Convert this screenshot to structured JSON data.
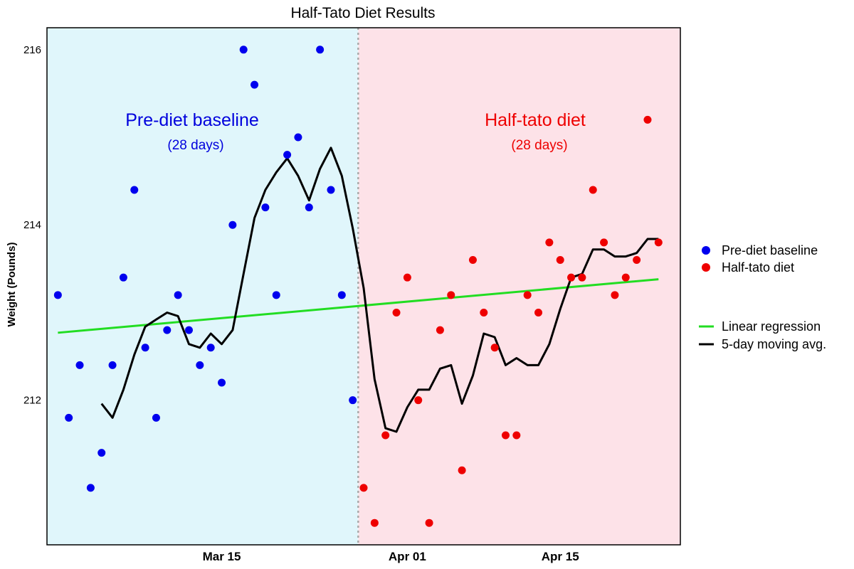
{
  "chart_data": {
    "type": "scatter",
    "title": "Half-Tato Diet Results",
    "ylabel": "Weight (Pounds)",
    "xlabel": "",
    "x_unit": "day index (0 = Feb 29)",
    "xlim": [
      -1,
      57
    ],
    "ylim": [
      210.35,
      216.25
    ],
    "yticks": [
      212,
      214,
      216
    ],
    "xticks": [
      {
        "day": 15,
        "label": "Mar 15"
      },
      {
        "day": 32,
        "label": "Apr 01"
      },
      {
        "day": 46,
        "label": "Apr 15"
      }
    ],
    "split_day": 27.5,
    "grid": false,
    "legend_position": "right",
    "regions": [
      {
        "label": "Pre-diet baseline",
        "sublabel": "(28 days)",
        "color": "#0000dd",
        "fill": "#e0f6fb"
      },
      {
        "label": "Half-tato diet",
        "sublabel": "(28 days)",
        "color": "#ee0000",
        "fill": "#fde2e8"
      }
    ],
    "series": [
      {
        "name": "Pre-diet baseline",
        "color": "#0000ee",
        "x": [
          0,
          1,
          2,
          3,
          4,
          5,
          6,
          7,
          8,
          9,
          10,
          11,
          12,
          13,
          14,
          15,
          16,
          17,
          18,
          19,
          20,
          21,
          22,
          23,
          24,
          25,
          26,
          27
        ],
        "values": [
          213.2,
          211.8,
          212.4,
          211.0,
          211.4,
          212.4,
          213.4,
          214.4,
          212.6,
          211.8,
          212.8,
          213.2,
          212.8,
          212.4,
          212.6,
          212.2,
          214.0,
          216.0,
          215.6,
          214.2,
          213.2,
          214.8,
          215.0,
          214.2,
          216.0,
          214.4,
          213.2,
          212.0
        ]
      },
      {
        "name": "Half-tato diet",
        "color": "#ee0000",
        "x": [
          28,
          29,
          30,
          31,
          32,
          33,
          34,
          35,
          36,
          37,
          38,
          39,
          40,
          41,
          42,
          43,
          44,
          45,
          46,
          47,
          48,
          49,
          50,
          51,
          52,
          53,
          54,
          55
        ],
        "values": [
          211.0,
          210.6,
          211.6,
          213.0,
          213.4,
          212.0,
          210.6,
          212.8,
          213.2,
          211.2,
          213.6,
          213.0,
          212.6,
          211.6,
          211.6,
          213.2,
          213.0,
          213.8,
          213.6,
          213.4,
          213.4,
          214.4,
          213.8,
          213.2,
          213.4,
          213.6,
          215.2,
          213.8
        ]
      }
    ],
    "linear_regression": {
      "name": "Linear regression",
      "color": "#22dd22",
      "x": [
        0,
        55
      ],
      "values": [
        212.77,
        213.38
      ]
    },
    "moving_average": {
      "name": "5-day moving avg.",
      "color": "#000000",
      "x": [
        4,
        5,
        6,
        7,
        8,
        9,
        10,
        11,
        12,
        13,
        14,
        15,
        16,
        17,
        18,
        19,
        20,
        21,
        22,
        23,
        24,
        25,
        26,
        27,
        28,
        29,
        30,
        31,
        32,
        33,
        34,
        35,
        36,
        37,
        38,
        39,
        40,
        41,
        42,
        43,
        44,
        45,
        46,
        47,
        48,
        49,
        50,
        51,
        52,
        53,
        54,
        55
      ],
      "values": [
        211.96,
        211.8,
        212.12,
        212.52,
        212.84,
        212.92,
        213.0,
        212.96,
        212.64,
        212.6,
        212.76,
        212.64,
        212.8,
        213.44,
        214.08,
        214.4,
        214.6,
        214.76,
        214.56,
        214.28,
        214.64,
        214.88,
        214.56,
        213.96,
        213.28,
        212.24,
        211.68,
        211.64,
        211.92,
        212.12,
        212.12,
        212.36,
        212.4,
        211.96,
        212.28,
        212.76,
        212.72,
        212.4,
        212.48,
        212.4,
        212.4,
        212.64,
        213.04,
        213.4,
        213.44,
        213.72,
        213.72,
        213.64,
        213.64,
        213.68,
        213.84,
        213.84
      ]
    }
  }
}
